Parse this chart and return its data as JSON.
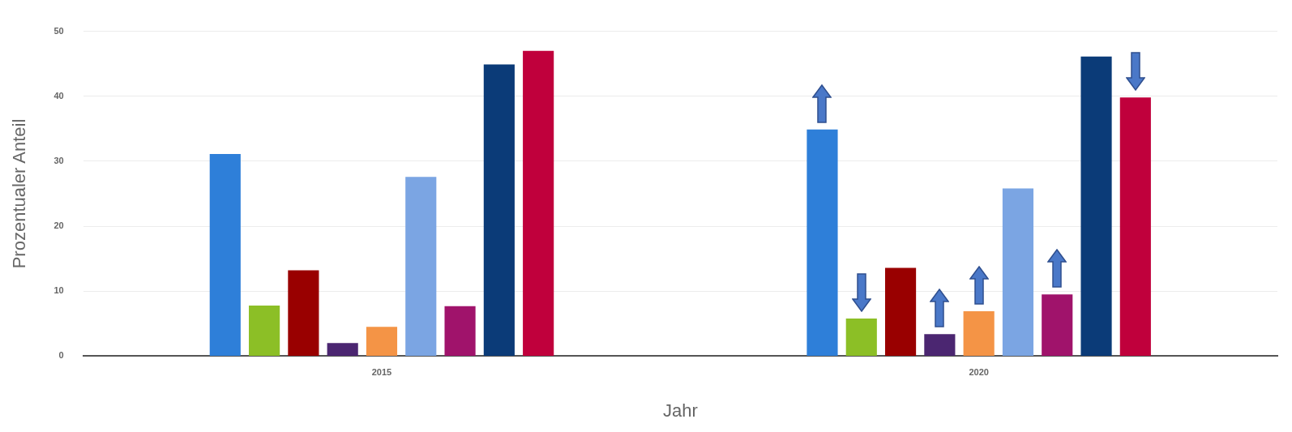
{
  "chart_data": {
    "type": "bar",
    "xlabel": "Jahr",
    "ylabel": "Prozentualer Anteil",
    "categories": [
      "2015",
      "2020"
    ],
    "series": [
      {
        "color": "#2e7fd9",
        "values": [
          31.1,
          34.9
        ]
      },
      {
        "color": "#8cbf26",
        "values": [
          7.8,
          5.8
        ]
      },
      {
        "color": "#990000",
        "values": [
          13.2,
          13.6
        ]
      },
      {
        "color": "#4b2671",
        "values": [
          2,
          3.4
        ]
      },
      {
        "color": "#f49446",
        "values": [
          4.5,
          6.9
        ]
      },
      {
        "color": "#7ba5e3",
        "values": [
          27.6,
          25.8
        ]
      },
      {
        "color": "#a0136b",
        "values": [
          7.7,
          9.5
        ]
      },
      {
        "color": "#0b3b78",
        "values": [
          44.9,
          46.1
        ]
      },
      {
        "color": "#c0003c",
        "values": [
          47,
          39.8
        ]
      }
    ],
    "ylim": [
      0,
      50
    ],
    "yticks": [
      0,
      10,
      20,
      30,
      40,
      50
    ],
    "grid": "y",
    "legend": false
  }
}
